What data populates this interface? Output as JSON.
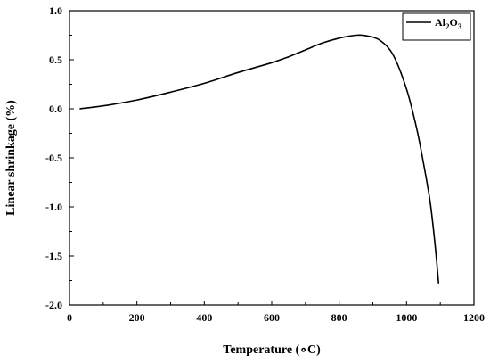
{
  "chart_data": {
    "type": "line",
    "title": "",
    "xlabel": "Temperature (∘C)",
    "ylabel": "Linear shrinkage (%)",
    "xlim": [
      0,
      1200
    ],
    "ylim": [
      -2.0,
      1.0
    ],
    "x_ticks": [
      "0",
      "200",
      "400",
      "600",
      "800",
      "1000",
      "1200"
    ],
    "y_ticks": [
      "1.0",
      "0.5",
      "0.0",
      "-0.5",
      "-1.0",
      "-1.5",
      "-2.0"
    ],
    "grid": false,
    "legend_position": "top-right",
    "legend": {
      "base": "Al",
      "sub1": "2",
      "mid": "O",
      "sub2": "3"
    },
    "series": [
      {
        "name": "Al2O3",
        "color": "#000000",
        "x": [
          30,
          100,
          200,
          300,
          400,
          500,
          600,
          650,
          700,
          750,
          800,
          850,
          880,
          920,
          960,
          1000,
          1030,
          1050,
          1070,
          1085,
          1095
        ],
        "y": [
          0.0,
          0.03,
          0.09,
          0.17,
          0.26,
          0.37,
          0.47,
          0.53,
          0.6,
          0.67,
          0.72,
          0.75,
          0.745,
          0.7,
          0.55,
          0.2,
          -0.2,
          -0.55,
          -0.95,
          -1.4,
          -1.78
        ]
      }
    ]
  }
}
